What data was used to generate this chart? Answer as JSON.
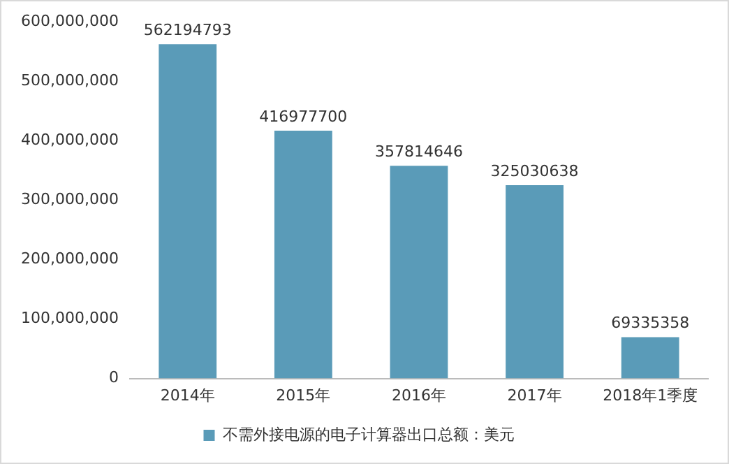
{
  "chart_data": {
    "type": "bar",
    "categories": [
      "2014年",
      "2015年",
      "2016年",
      "2017年",
      "2018年1季度"
    ],
    "series": [
      {
        "name": "不需外接电源的电子计算器出口总额：美元",
        "color": "#5a9bb8",
        "values": [
          562194793,
          416977700,
          357814646,
          325030638,
          69335358
        ]
      }
    ],
    "ylim": [
      0,
      600000000
    ],
    "yticks": [
      0,
      {
        "value": 100000000,
        "label": "100,000,000"
      },
      {
        "value": 200000000,
        "label": "200,000,000"
      },
      {
        "value": 300000000,
        "label": "300,000,000"
      },
      {
        "value": 400000000,
        "label": "400,000,000"
      },
      {
        "value": 500000000,
        "label": "500,000,000"
      },
      {
        "value": 600000000,
        "label": "600,000,000"
      }
    ],
    "grid": false,
    "legend": "bottom",
    "data_labels": true
  }
}
